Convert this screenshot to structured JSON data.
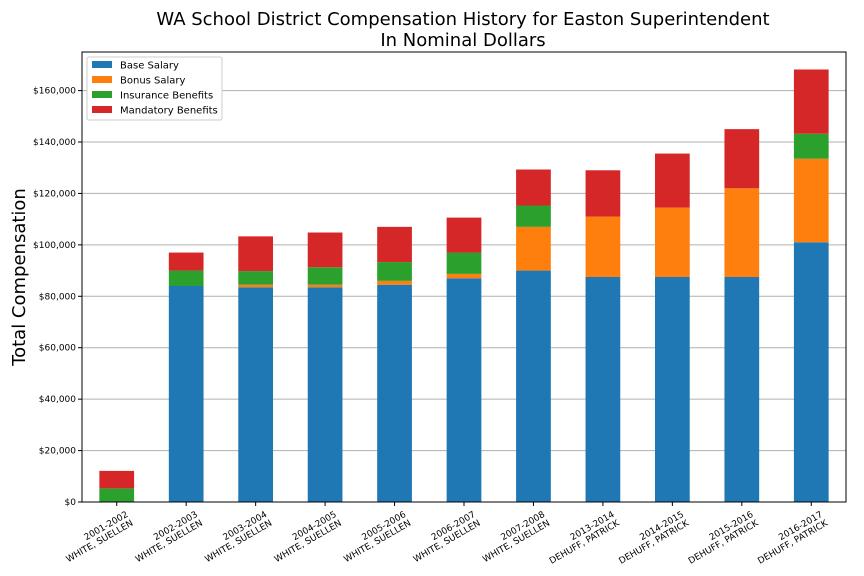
{
  "chart_data": {
    "type": "bar",
    "stacked": true,
    "title": "WA School District Compensation History for Easton Superintendent",
    "subtitle": "In Nominal Dollars",
    "xlabel": "",
    "ylabel": "Total Compensation",
    "ylim": [
      0,
      175000
    ],
    "yticks": [
      0,
      20000,
      40000,
      60000,
      80000,
      100000,
      120000,
      140000,
      160000
    ],
    "ytick_labels": [
      "$0",
      "$20,000",
      "$40,000",
      "$60,000",
      "$80,000",
      "$100,000",
      "$120,000",
      "$140,000",
      "$160,000"
    ],
    "grid": "y",
    "legend_position": "top-left",
    "categories": [
      [
        "2001-2002",
        "WHITE, SUELLEN"
      ],
      [
        "2002-2003",
        "WHITE, SUELLEN"
      ],
      [
        "2003-2004",
        "WHITE, SUELLEN"
      ],
      [
        "2004-2005",
        "WHITE, SUELLEN"
      ],
      [
        "2005-2006",
        "WHITE, SUELLEN"
      ],
      [
        "2006-2007",
        "WHITE, SUELLEN"
      ],
      [
        "2007-2008",
        "WHITE, SUELLEN"
      ],
      [
        "2013-2014",
        "DEHUFF, PATRICK"
      ],
      [
        "2014-2015",
        "DEHUFF, PATRICK"
      ],
      [
        "2015-2016",
        "DEHUFF, PATRICK"
      ],
      [
        "2016-2017",
        "DEHUFF, PATRICK"
      ]
    ],
    "series": [
      {
        "name": "Base Salary",
        "color": "#1f77b4",
        "values": [
          0,
          84000,
          83500,
          83500,
          84500,
          87000,
          90000,
          87500,
          87500,
          87500,
          101000
        ]
      },
      {
        "name": "Bonus Salary",
        "color": "#ff7f0e",
        "values": [
          0,
          0,
          1000,
          1000,
          1500,
          1700,
          17000,
          23500,
          27000,
          34500,
          32500
        ]
      },
      {
        "name": "Insurance Benefits",
        "color": "#2ca02c",
        "values": [
          5300,
          6000,
          5300,
          6800,
          7300,
          8300,
          8300,
          0,
          0,
          0,
          9700
        ]
      },
      {
        "name": "Mandatory Benefits",
        "color": "#d62728",
        "values": [
          6800,
          7000,
          13500,
          13500,
          13700,
          13600,
          14000,
          18000,
          21000,
          23000,
          25000
        ]
      }
    ]
  }
}
